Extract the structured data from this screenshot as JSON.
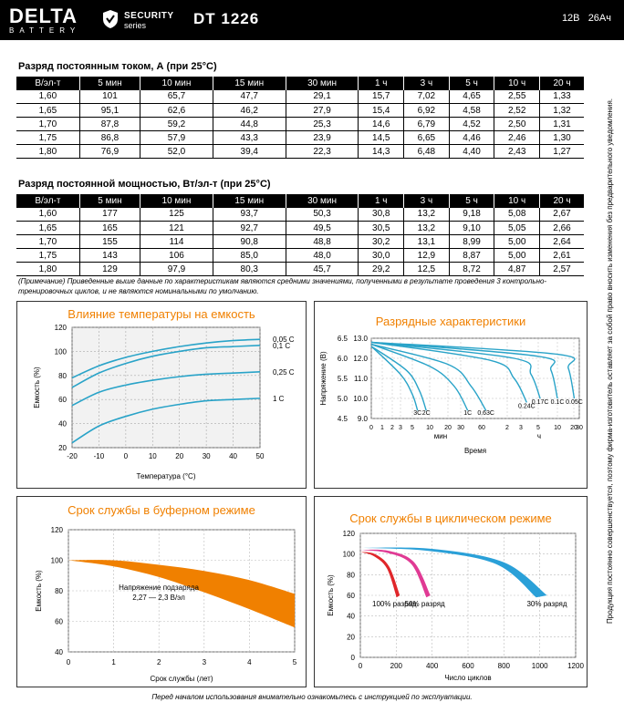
{
  "header": {
    "logo_main": "DELTA",
    "logo_sub": "BATTERY",
    "security_line1": "SECURITY",
    "security_line2": "series",
    "model": "DT 1226",
    "voltage": "12В",
    "capacity": "26Ач"
  },
  "current_table": {
    "title": "Разряд постоянным током, А (при 25°C)",
    "columns": [
      "В/эл-т",
      "5 мин",
      "10 мин",
      "15 мин",
      "30 мин",
      "1 ч",
      "3 ч",
      "5 ч",
      "10 ч",
      "20 ч"
    ],
    "rows": [
      [
        "1,60",
        "101",
        "65,7",
        "47,7",
        "29,1",
        "15,7",
        "7,02",
        "4,65",
        "2,55",
        "1,33"
      ],
      [
        "1,65",
        "95,1",
        "62,6",
        "46,2",
        "27,9",
        "15,4",
        "6,92",
        "4,58",
        "2,52",
        "1,32"
      ],
      [
        "1,70",
        "87,8",
        "59,2",
        "44,8",
        "25,3",
        "14,6",
        "6,79",
        "4,52",
        "2,50",
        "1,31"
      ],
      [
        "1,75",
        "86,8",
        "57,9",
        "43,3",
        "23,9",
        "14,5",
        "6,65",
        "4,46",
        "2,46",
        "1,30"
      ],
      [
        "1,80",
        "76,9",
        "52,0",
        "39,4",
        "22,3",
        "14,3",
        "6,48",
        "4,40",
        "2,43",
        "1,27"
      ]
    ]
  },
  "power_table": {
    "title": "Разряд постоянной мощностью, Вт/эл-т (при 25°C)",
    "columns": [
      "В/эл-т",
      "5 мин",
      "10 мин",
      "15 мин",
      "30 мин",
      "1 ч",
      "3 ч",
      "5 ч",
      "10 ч",
      "20 ч"
    ],
    "rows": [
      [
        "1,60",
        "177",
        "125",
        "93,7",
        "50,3",
        "30,8",
        "13,2",
        "9,18",
        "5,08",
        "2,67"
      ],
      [
        "1,65",
        "165",
        "121",
        "92,7",
        "49,5",
        "30,5",
        "13,2",
        "9,10",
        "5,05",
        "2,66"
      ],
      [
        "1,70",
        "155",
        "114",
        "90,8",
        "48,8",
        "30,2",
        "13,1",
        "8,99",
        "5,00",
        "2,64"
      ],
      [
        "1,75",
        "143",
        "106",
        "85,0",
        "48,0",
        "30,0",
        "12,9",
        "8,87",
        "5,00",
        "2,61"
      ],
      [
        "1,80",
        "129",
        "97,9",
        "80,3",
        "45,7",
        "29,2",
        "12,5",
        "8,72",
        "4,87",
        "2,57"
      ]
    ]
  },
  "note": "(Примечание) Приведенные выше данные по характеристикам являются средними значениями, полученными в результате проведения 3 контрольно-тренировочных циклов, и не являются номинальными по умолчанию.",
  "side_text": "Продукция постоянно совершенствуется, поэтому фирма-изготовитель оставляет за собой право вносить изменения без предварительного уведомления.",
  "footer": "Перед началом использования внимательно ознакомьтесь с инструкцией по эксплуатации.",
  "colors": {
    "accent": "#f08000",
    "curve": "#29a3c8",
    "black": "#000000",
    "red": "#e0262a",
    "magenta": "#e03a94",
    "blue": "#2aa0d8"
  },
  "chart_data": [
    {
      "type": "line",
      "title": "Влияние температуры на емкость",
      "xlabel": "Температура (°C)",
      "ylabel": "Емкость (%)",
      "x_ticks": [
        "-20",
        "-10",
        "0",
        "10",
        "20",
        "30",
        "40",
        "50"
      ],
      "y_ticks": [
        "20",
        "40",
        "60",
        "80",
        "100",
        "120"
      ],
      "xlim": [
        -20,
        50
      ],
      "ylim": [
        20,
        120
      ],
      "grid": true,
      "series": [
        {
          "name": "0,05 C",
          "x": [
            -20,
            -10,
            0,
            10,
            20,
            30,
            40,
            50
          ],
          "y": [
            78,
            88,
            95,
            100,
            104,
            107,
            109,
            110
          ]
        },
        {
          "name": "0,1 C",
          "x": [
            -20,
            -10,
            0,
            10,
            20,
            30,
            40,
            50
          ],
          "y": [
            70,
            82,
            90,
            96,
            100,
            103,
            104,
            105
          ]
        },
        {
          "name": "0,25 C",
          "x": [
            -20,
            -10,
            0,
            10,
            20,
            30,
            40,
            50
          ],
          "y": [
            55,
            66,
            72,
            76,
            79,
            81,
            82,
            83
          ]
        },
        {
          "name": "1 C",
          "x": [
            -20,
            -10,
            0,
            10,
            20,
            30,
            40,
            50
          ],
          "y": [
            24,
            38,
            46,
            52,
            56,
            59,
            60,
            61
          ]
        }
      ]
    },
    {
      "type": "line",
      "title": "Разрядные характеристики",
      "xlabel": "Время",
      "ylabel": "Напряжение (В)",
      "x_ticks": [
        "0",
        "1",
        "2",
        "3",
        "5",
        "10",
        "20",
        "30",
        "60",
        "2",
        "3",
        "5",
        "10",
        "20",
        "30"
      ],
      "x_unit_labels": [
        "мин",
        "ч"
      ],
      "y_ticks": [
        "4.5",
        "5.0",
        "5.5",
        "6.0",
        "6.5"
      ],
      "y_ticks_right": [
        "9.0",
        "10.0",
        "11.0",
        "12.0",
        "13.0"
      ],
      "ylim": [
        4.5,
        6.5
      ],
      "grid": true,
      "series": [
        {
          "name": "3C",
          "x_min": [
            0,
            3,
            5,
            6.5
          ],
          "y": [
            6.3,
            5.6,
            5.1,
            4.7
          ]
        },
        {
          "name": "2C",
          "x_min": [
            0,
            4,
            7,
            9
          ],
          "y": [
            6.3,
            5.7,
            5.2,
            4.7
          ]
        },
        {
          "name": "1C",
          "x_min": [
            0,
            10,
            25,
            40
          ],
          "y": [
            6.35,
            5.8,
            5.3,
            4.7
          ]
        },
        {
          "name": "0.63C",
          "x_min": [
            0,
            20,
            45,
            70
          ],
          "y": [
            6.35,
            5.85,
            5.3,
            4.7
          ]
        },
        {
          "name": "0.24C",
          "x_min": [
            0,
            80,
            150,
            220
          ],
          "y": [
            6.4,
            5.95,
            5.5,
            4.9
          ]
        },
        {
          "name": "0.17C",
          "x_min": [
            0,
            150,
            250,
            330
          ],
          "y": [
            6.4,
            6.0,
            5.6,
            5.0
          ]
        },
        {
          "name": "0.1C",
          "x_min": [
            0,
            300,
            500,
            600
          ],
          "y": [
            6.4,
            6.05,
            5.7,
            5.0
          ]
        },
        {
          "name": "0.05C",
          "x_min": [
            0,
            600,
            1000,
            1250
          ],
          "y": [
            6.4,
            6.1,
            5.75,
            5.0
          ]
        }
      ]
    },
    {
      "type": "area",
      "title": "Срок службы в буферном режиме",
      "xlabel": "Срок службы (лет)",
      "ylabel": "Емкость (%)",
      "x_ticks": [
        "0",
        "1",
        "2",
        "3",
        "4",
        "5"
      ],
      "y_ticks": [
        "40",
        "60",
        "80",
        "100",
        "120"
      ],
      "xlim": [
        0,
        5
      ],
      "ylim": [
        40,
        120
      ],
      "grid": true,
      "annotation": "Напряжение подзаряда\n2,27 — 2,3 В/эл",
      "upper": {
        "x": [
          0,
          1,
          2,
          3,
          4,
          5
        ],
        "y": [
          100,
          100,
          97,
          93,
          87,
          78
        ]
      },
      "lower": {
        "x": [
          0,
          1,
          2,
          3,
          4,
          5
        ],
        "y": [
          100,
          96,
          89,
          79,
          68,
          56
        ]
      }
    },
    {
      "type": "area",
      "title": "Срок службы в циклическом режиме",
      "xlabel": "Число циклов",
      "ylabel": "Емкость (%)",
      "x_ticks": [
        "0",
        "200",
        "400",
        "600",
        "800",
        "1000",
        "1200"
      ],
      "y_ticks": [
        "0",
        "20",
        "40",
        "60",
        "80",
        "100",
        "120"
      ],
      "xlim": [
        0,
        1200
      ],
      "ylim": [
        0,
        120
      ],
      "grid": true,
      "series": [
        {
          "name": "100% разряд",
          "x": [
            0,
            80,
            160,
            220
          ],
          "y": [
            102,
            100,
            88,
            60
          ]
        },
        {
          "name": "50% разряд",
          "x": [
            0,
            160,
            300,
            390
          ],
          "y": [
            104,
            103,
            92,
            60
          ]
        },
        {
          "name": "30% разряд",
          "x": [
            0,
            400,
            800,
            1040
          ],
          "y": [
            106,
            105,
            92,
            60
          ]
        }
      ]
    }
  ]
}
